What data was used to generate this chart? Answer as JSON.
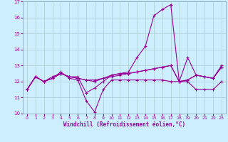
{
  "x": [
    0,
    1,
    2,
    3,
    4,
    5,
    6,
    7,
    8,
    9,
    10,
    11,
    12,
    13,
    14,
    15,
    16,
    17,
    18,
    19,
    20,
    21,
    22,
    23
  ],
  "line_zigzag": [
    11.5,
    12.3,
    12.0,
    12.2,
    12.6,
    12.2,
    12.1,
    10.8,
    10.1,
    11.5,
    12.1,
    12.1,
    12.1,
    12.1,
    12.1,
    12.1,
    12.1,
    12.0,
    12.0,
    12.0,
    11.5,
    11.5,
    11.5,
    12.0
  ],
  "line_rise": [
    11.5,
    12.3,
    12.0,
    12.3,
    12.5,
    12.3,
    12.3,
    11.3,
    11.6,
    12.0,
    12.4,
    12.5,
    12.6,
    13.5,
    14.2,
    16.1,
    16.5,
    16.8,
    12.0,
    12.1,
    12.4,
    12.3,
    12.2,
    13.0
  ],
  "line_flat1": [
    11.5,
    12.3,
    12.0,
    12.2,
    12.5,
    12.3,
    12.2,
    12.1,
    12.0,
    12.2,
    12.3,
    12.4,
    12.5,
    12.6,
    12.7,
    12.8,
    12.9,
    13.0,
    12.0,
    12.1,
    12.4,
    12.3,
    12.2,
    12.9
  ],
  "line_flat2": [
    11.5,
    12.3,
    12.0,
    12.2,
    12.5,
    12.3,
    12.2,
    12.1,
    12.1,
    12.2,
    12.4,
    12.5,
    12.5,
    12.6,
    12.7,
    12.8,
    12.9,
    13.0,
    12.0,
    13.5,
    12.4,
    12.3,
    12.2,
    12.9
  ],
  "line_color": "#990099",
  "bg_color": "#cceeff",
  "grid_color": "#aacccc",
  "xlabel": "Windchill (Refroidissement éolien,°C)",
  "ylim": [
    10,
    17
  ],
  "xlim": [
    -0.5,
    23.5
  ],
  "yticks": [
    10,
    11,
    12,
    13,
    14,
    15,
    16,
    17
  ],
  "xticks": [
    0,
    1,
    2,
    3,
    4,
    5,
    6,
    7,
    8,
    9,
    10,
    11,
    12,
    13,
    14,
    15,
    16,
    17,
    18,
    19,
    20,
    21,
    22,
    23
  ]
}
